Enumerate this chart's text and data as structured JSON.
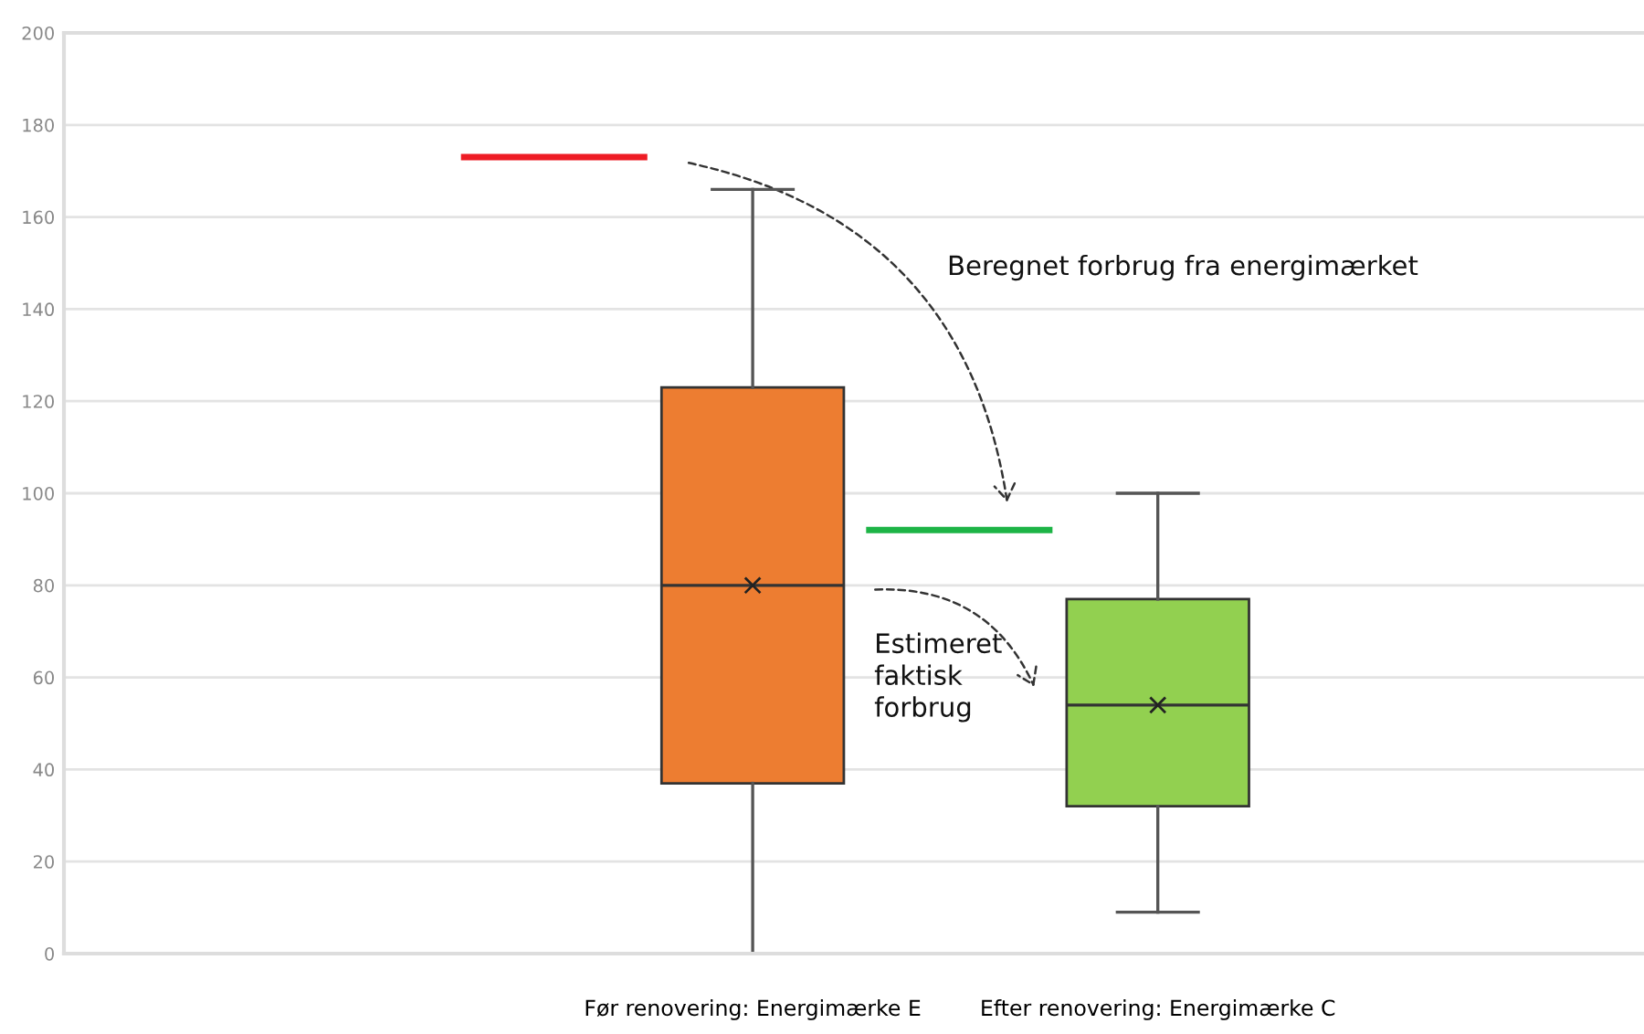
{
  "chart_data": {
    "type": "box",
    "categories": [
      "Før renovering: Energimærke E",
      "Efter renovering: Energimærke C"
    ],
    "colors": [
      "#ed7d31",
      "#92d050"
    ],
    "boxes": [
      {
        "low": 0,
        "q1": 37,
        "median": 80,
        "q3": 123,
        "high": 166,
        "mean": 80
      },
      {
        "low": 9,
        "q1": 32,
        "median": 54,
        "q3": 77,
        "high": 100,
        "mean": 54
      }
    ],
    "ref_lines": [
      {
        "axis": "y",
        "value": 173,
        "color": "#ee1c25"
      },
      {
        "axis": "y",
        "value": 92,
        "color": "#1db446"
      }
    ],
    "annotations": [
      "Beregnet forbrug fra energimærket",
      "Estimeret faktisk forbrug"
    ],
    "ylim": [
      0,
      200
    ],
    "yticks": [
      0,
      20,
      40,
      60,
      80,
      100,
      120,
      140,
      160,
      180,
      200
    ],
    "grid": "y"
  }
}
